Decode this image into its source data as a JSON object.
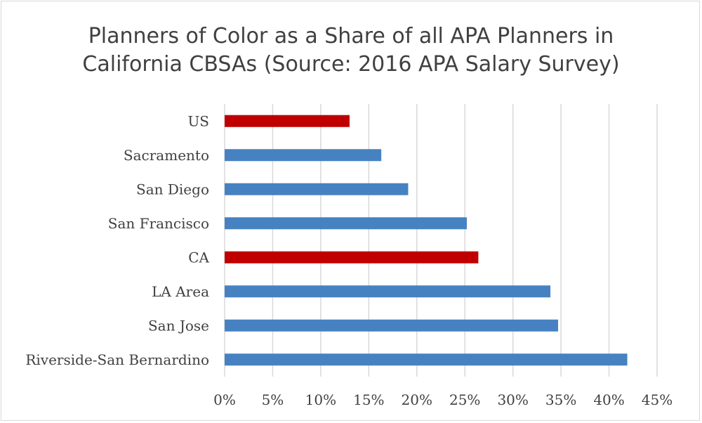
{
  "chart_data": {
    "type": "bar",
    "orientation": "horizontal",
    "title_lines": [
      "Planners of Color as a Share of all APA Planners in",
      "California CBSAs (Source: 2016 APA Salary Survey)"
    ],
    "categories": [
      "US",
      "Sacramento",
      "San Diego",
      "San Francisco",
      "CA",
      "LA Area",
      "San Jose",
      "Riverside-San Bernardino"
    ],
    "values": [
      0.13,
      0.163,
      0.191,
      0.252,
      0.264,
      0.339,
      0.347,
      0.419
    ],
    "highlight": [
      true,
      false,
      false,
      false,
      true,
      false,
      false,
      false
    ],
    "xlim": [
      0,
      0.45
    ],
    "xticks": [
      0,
      0.05,
      0.1,
      0.15,
      0.2,
      0.25,
      0.3,
      0.35,
      0.4,
      0.45
    ],
    "xtick_labels": [
      "0%",
      "5%",
      "10%",
      "15%",
      "20%",
      "25%",
      "30%",
      "35%",
      "40%",
      "45%"
    ],
    "grid": true,
    "legend": "none",
    "colors": {
      "default_bar": "#4682c1",
      "highlight_bar": "#c00000",
      "grid": "#d9d9d9",
      "text": "#404040"
    }
  }
}
